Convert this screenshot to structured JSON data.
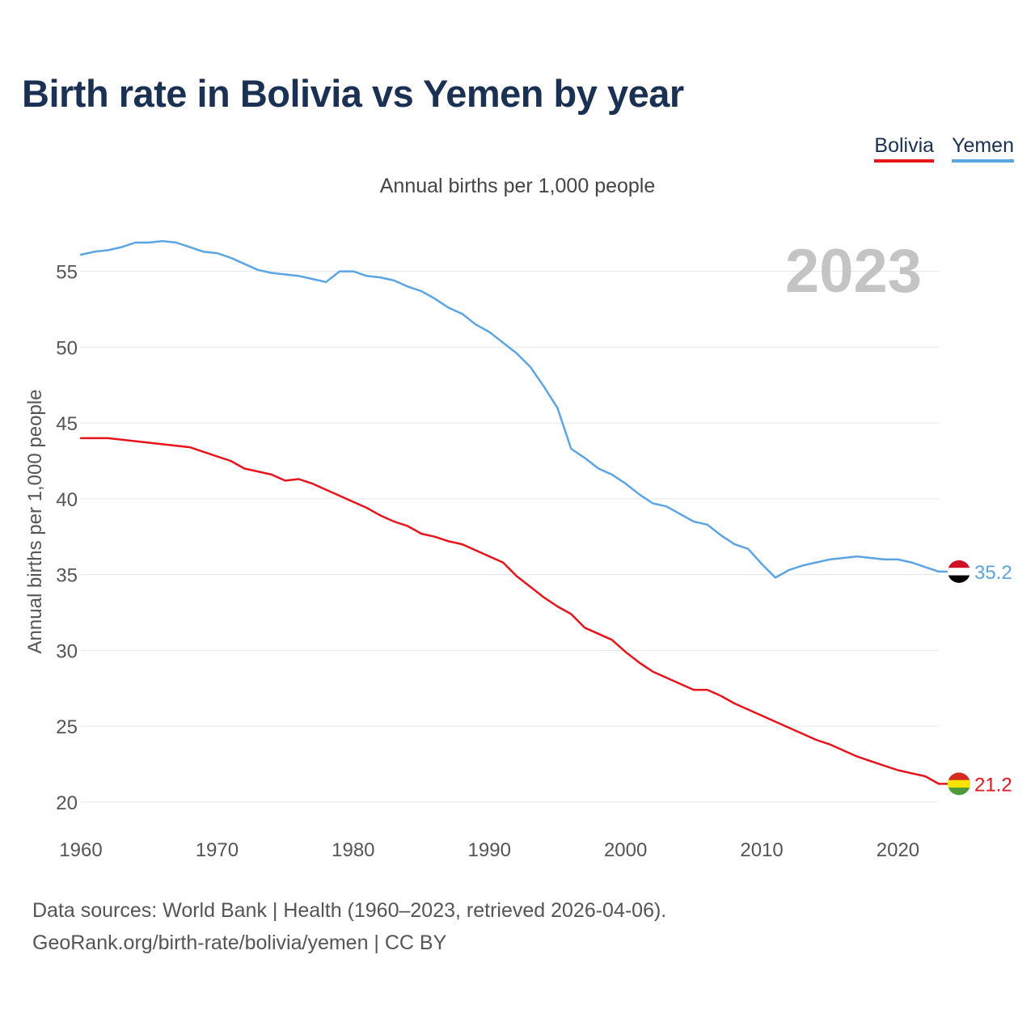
{
  "title": "Birth rate in Bolivia vs Yemen by year",
  "subtitle": "Annual births per 1,000 people",
  "legend": [
    {
      "label": "Bolivia",
      "color": "#e8141c"
    },
    {
      "label": "Yemen",
      "color": "#5ba5e5"
    }
  ],
  "year_watermark": "2023",
  "footer": {
    "line1": "Data sources: World Bank | Health (1960–2023, retrieved 2026-04-06).",
    "line2": "GeoRank.org/birth-rate/bolivia/yemen | CC BY"
  },
  "chart_data": {
    "type": "line",
    "title": "Birth rate in Bolivia vs Yemen by year",
    "ylabel": "Annual births per 1,000 people",
    "xlabel": "",
    "xlim": [
      1960,
      2023
    ],
    "ylim": [
      18.5,
      58.5
    ],
    "xticks": [
      1960,
      1970,
      1980,
      1990,
      2000,
      2010,
      2020
    ],
    "yticks": [
      20,
      25,
      30,
      35,
      40,
      45,
      50,
      55
    ],
    "grid": true,
    "x_start": 1960,
    "series": [
      {
        "name": "Bolivia",
        "color": "#e8141c",
        "end_label": "21.2",
        "flag": "bolivia",
        "values": [
          44.0,
          44.0,
          44.0,
          43.9,
          43.8,
          43.7,
          43.6,
          43.5,
          43.4,
          43.1,
          42.8,
          42.5,
          42.0,
          41.8,
          41.6,
          41.2,
          41.3,
          41.0,
          40.6,
          40.2,
          39.8,
          39.4,
          38.9,
          38.5,
          38.2,
          37.7,
          37.5,
          37.2,
          37.0,
          36.6,
          36.2,
          35.8,
          34.9,
          34.2,
          33.5,
          32.9,
          32.4,
          31.5,
          31.1,
          30.7,
          29.9,
          29.2,
          28.6,
          28.2,
          27.8,
          27.4,
          27.4,
          27.0,
          26.5,
          26.1,
          25.7,
          25.3,
          24.9,
          24.5,
          24.1,
          23.8,
          23.4,
          23.0,
          22.7,
          22.4,
          22.1,
          21.9,
          21.7,
          21.2
        ]
      },
      {
        "name": "Yemen",
        "color": "#5ba5e5",
        "end_label": "35.2",
        "flag": "yemen",
        "values": [
          56.1,
          56.3,
          56.4,
          56.6,
          56.9,
          56.9,
          57.0,
          56.9,
          56.6,
          56.3,
          56.2,
          55.9,
          55.5,
          55.1,
          54.9,
          54.8,
          54.7,
          54.5,
          54.3,
          55.0,
          55.0,
          54.7,
          54.6,
          54.4,
          54.0,
          53.7,
          53.2,
          52.6,
          52.2,
          51.5,
          51.0,
          50.3,
          49.6,
          48.7,
          47.4,
          46.0,
          43.3,
          42.7,
          42.0,
          41.6,
          41.0,
          40.3,
          39.7,
          39.5,
          39.0,
          38.5,
          38.3,
          37.6,
          37.0,
          36.7,
          35.7,
          34.8,
          35.3,
          35.6,
          35.8,
          36.0,
          36.1,
          36.2,
          36.1,
          36.0,
          36.0,
          35.8,
          35.5,
          35.2
        ]
      }
    ]
  }
}
